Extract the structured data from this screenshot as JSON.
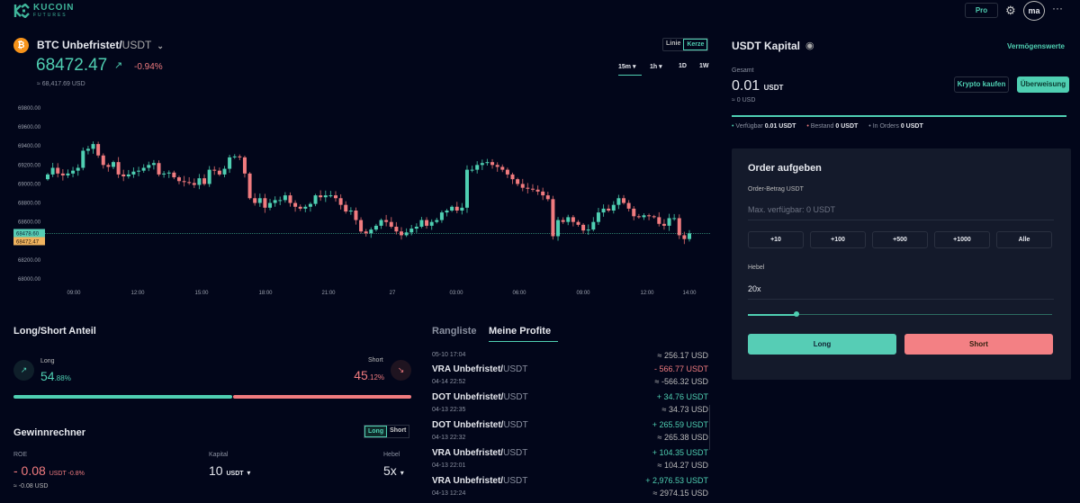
{
  "header": {
    "logo_top": "KUCOIN",
    "logo_bottom": "FUTURES",
    "pro_label": "Pro",
    "avatar": "ma",
    "more": "···"
  },
  "ticker": {
    "base": "BTC Unbefristet/",
    "quote": "USDT",
    "price": "68472.47",
    "change": "-0.94%",
    "usd": "≈ 68,417.69 USD"
  },
  "chart_controls": {
    "line": "Linie",
    "candle": "Kerze",
    "intervals": [
      "15m",
      "1h",
      "1D",
      "1W"
    ]
  },
  "chart_data": {
    "type": "candlestick",
    "ylim": [
      67900,
      69900
    ],
    "y_ticks": [
      "69800.00",
      "69600.00",
      "69400.00",
      "69200.00",
      "69000.00",
      "68800.00",
      "68600.00",
      "68200.00",
      "68000.00"
    ],
    "y_tick_values": [
      69800,
      69600,
      69400,
      69200,
      69000,
      68800,
      68600,
      68200,
      68000
    ],
    "x_ticks": [
      "09:00",
      "12:00",
      "15:00",
      "18:00",
      "21:00",
      "27",
      "03:00",
      "06:00",
      "09:00",
      "12:00",
      "14:00"
    ],
    "mark_price": "68478.60",
    "last_price": "68472.47",
    "mark_value": 68478.6,
    "first_open": 69050,
    "closes": [
      69100,
      69170,
      69110,
      69090,
      69110,
      69140,
      69170,
      69350,
      69370,
      69420,
      69300,
      69200,
      69180,
      69230,
      69100,
      69080,
      69100,
      69130,
      69140,
      69170,
      69200,
      69220,
      69100,
      69110,
      69120,
      69070,
      69030,
      69020,
      69010,
      68990,
      69060,
      69000,
      69150,
      69140,
      69100,
      69160,
      69280,
      69290,
      69280,
      69110,
      68850,
      68800,
      68850,
      68750,
      68800,
      68830,
      68830,
      68880,
      68800,
      68760,
      68740,
      68760,
      68790,
      68880,
      68860,
      68880,
      68880,
      68850,
      68780,
      68710,
      68720,
      68620,
      68500,
      68480,
      68520,
      68560,
      68620,
      68600,
      68550,
      68500,
      68460,
      68490,
      68530,
      68550,
      68620,
      68560,
      68600,
      68620,
      68700,
      68720,
      68760,
      68720,
      68750,
      69150,
      69150,
      69200,
      69220,
      69230,
      69200,
      69180,
      69150,
      69100,
      69050,
      69000,
      68960,
      68950,
      68940,
      68920,
      68880,
      68840,
      68450,
      68620,
      68600,
      68650,
      68600,
      68570,
      68510,
      68520,
      68600,
      68700,
      68740,
      68720,
      68780,
      68850,
      68800,
      68740,
      68660,
      68650,
      68670,
      68660,
      68650,
      68580,
      68560,
      68640,
      68640,
      68460,
      68420,
      68480
    ]
  },
  "capital": {
    "title": "USDT Kapital",
    "assets_link": "Vermögenswerte",
    "total_label": "Gesamt",
    "total": "0.01",
    "unit": "USDT",
    "usd": "≈ 0 USD",
    "buy": "Krypto kaufen",
    "transfer": "Überweisung",
    "legend": [
      {
        "label": "Verfügbar",
        "value": "0.01 USDT"
      },
      {
        "label": "Bestand",
        "value": "0 USDT"
      },
      {
        "label": "In Orders",
        "value": "0 USDT"
      }
    ]
  },
  "order": {
    "title": "Order aufgeben",
    "amount_label": "Order-Betrag USDT",
    "amount_placeholder": "Max. verfügbar: 0 USDT",
    "quick": [
      "+10",
      "+100",
      "+500",
      "+1000",
      "Alle"
    ],
    "lev_label": "Hebel",
    "lev_value": "20x",
    "lev_fraction": 0.16,
    "long": "Long",
    "short": "Short"
  },
  "ratio": {
    "title": "Long/Short Anteil",
    "long_label": "Long",
    "long_int": "54",
    "long_dec": ".88%",
    "short_label": "Short",
    "short_int": "45",
    "short_dec": ".12%",
    "long_percent": 54.88
  },
  "calc": {
    "title": "Gewinnrechner",
    "toggle_long": "Long",
    "toggle_short": "Short",
    "roe_label": "ROE",
    "roe": "- 0.08",
    "roe_unit": "USDT -0.8%",
    "roe_usd": "≈ -0.08 USD",
    "cap_label": "Kapital",
    "cap": "10",
    "cap_unit": "USDT",
    "lev_label": "Hebel",
    "lev": "5x"
  },
  "profits": {
    "tabs": [
      "Rangliste",
      "Meine Profite"
    ],
    "partial": {
      "date": "05-10 17:04",
      "usd": "≈ 256.17 USD"
    },
    "rows": [
      {
        "coin": "VRA Unbefristet/",
        "quote": "USDT",
        "date": "04-14 22:52",
        "amount": "- 566.77 USDT",
        "usd": "≈ -566.32 USD",
        "neg": true
      },
      {
        "coin": "DOT Unbefristet/",
        "quote": "USDT",
        "date": "04-13 22:35",
        "amount": "+ 34.76 USDT",
        "usd": "≈ 34.73 USD",
        "neg": false
      },
      {
        "coin": "DOT Unbefristet/",
        "quote": "USDT",
        "date": "04-13 22:32",
        "amount": "+ 265.59 USDT",
        "usd": "≈ 265.38 USD",
        "neg": false
      },
      {
        "coin": "VRA Unbefristet/",
        "quote": "USDT",
        "date": "04-13 22:01",
        "amount": "+ 104.35 USDT",
        "usd": "≈ 104.27 USD",
        "neg": false
      },
      {
        "coin": "VRA Unbefristet/",
        "quote": "USDT",
        "date": "04-13 12:24",
        "amount": "+ 2,976.53 USDT",
        "usd": "≈ 2974.15 USD",
        "neg": false
      }
    ]
  }
}
